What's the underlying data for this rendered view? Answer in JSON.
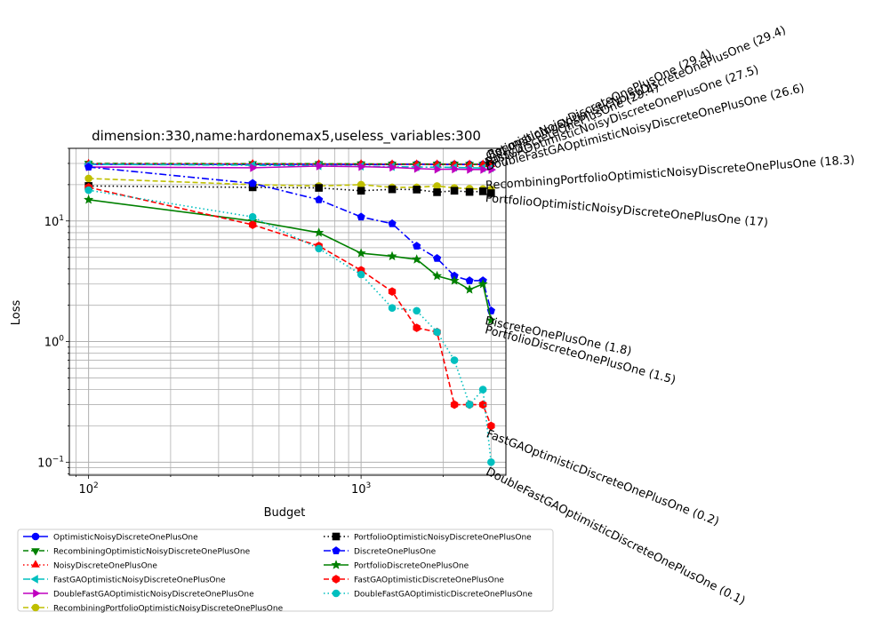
{
  "chart_data": {
    "type": "line",
    "title": "dimension:330,name:hardonemax5,useless_variables:300",
    "xlabel": "Budget",
    "ylabel": "Loss",
    "xscale": "log",
    "yscale": "log",
    "xlim": [
      85,
      3400
    ],
    "ylim": [
      0.078,
      40
    ],
    "grid": true,
    "legend_position": "below plot, two columns",
    "x_tick_labels": [
      {
        "value": 100,
        "base": "10",
        "exp": "2"
      },
      {
        "value": 1000,
        "base": "10",
        "exp": "3"
      }
    ],
    "y_tick_labels": [
      {
        "value": 0.1,
        "base": "10",
        "exp": "−1"
      },
      {
        "value": 1,
        "base": "10",
        "exp": "0"
      },
      {
        "value": 10,
        "base": "10",
        "exp": "1"
      }
    ],
    "series": [
      {
        "name": "OptimisticNoisyDiscreteOnePlusOne",
        "color": "#0000ff",
        "dash": "solid",
        "marker": "circle",
        "x": [
          100,
          400,
          700,
          1000,
          1300,
          1600,
          1900,
          2200,
          2500,
          2800,
          3000
        ],
        "y": [
          29.5,
          29.4,
          29.5,
          29.4,
          29.4,
          29.5,
          29.4,
          29.4,
          29.4,
          29.4,
          29.4
        ]
      },
      {
        "name": "RecombiningOptimisticNoisyDiscreteOnePlusOne",
        "color": "#008000",
        "dash": "dashed",
        "marker": "triangle-down",
        "x": [
          100,
          400,
          700,
          1000,
          1300,
          1600,
          1900,
          2200,
          2500,
          2800,
          3000
        ],
        "y": [
          30.0,
          29.8,
          29.8,
          29.7,
          29.6,
          29.6,
          29.5,
          29.5,
          29.4,
          29.4,
          29.4
        ]
      },
      {
        "name": "NoisyDiscreteOnePlusOne",
        "color": "#ff0000",
        "dash": "dotted",
        "marker": "triangle-up",
        "x": [
          100,
          400,
          700,
          1000,
          1300,
          1600,
          1900,
          2200,
          2500,
          2800,
          3000
        ],
        "y": [
          29.8,
          29.7,
          29.6,
          29.6,
          29.5,
          29.5,
          29.5,
          29.4,
          29.4,
          29.4,
          29.4
        ]
      },
      {
        "name": "FastGAOptimisticNoisyDiscreteOnePlusOne",
        "color": "#00bfbf",
        "dash": "dashdot",
        "marker": "triangle-left",
        "x": [
          100,
          400,
          700,
          1000,
          1300,
          1600,
          1900,
          2200,
          2500,
          2800,
          3000
        ],
        "y": [
          29.5,
          29.0,
          28.6,
          28.4,
          28.2,
          28.0,
          27.9,
          27.8,
          27.6,
          27.5,
          27.5
        ]
      },
      {
        "name": "DoubleFastGAOptimisticNoisyDiscreteOnePlusOne",
        "color": "#bf00bf",
        "dash": "solid",
        "marker": "triangle-right",
        "x": [
          100,
          400,
          700,
          1000,
          1300,
          1600,
          1900,
          2200,
          2500,
          2800,
          3000
        ],
        "y": [
          28.0,
          27.6,
          28.5,
          28.2,
          27.8,
          27.2,
          26.8,
          26.9,
          26.7,
          26.7,
          26.6
        ]
      },
      {
        "name": "RecombiningPortfolioOptimisticNoisyDiscreteOnePlusOne",
        "color": "#bfbf00",
        "dash": "dashed",
        "marker": "circle",
        "x": [
          100,
          400,
          700,
          1000,
          1300,
          1600,
          1900,
          2200,
          2500,
          2800,
          3000
        ],
        "y": [
          22.5,
          20.0,
          19.5,
          20.0,
          19.0,
          19.0,
          19.5,
          18.8,
          18.5,
          18.4,
          18.3
        ]
      },
      {
        "name": "PortfolioOptimisticNoisyDiscreteOnePlusOne",
        "color": "#000000",
        "dash": "dotted",
        "marker": "square",
        "x": [
          100,
          400,
          700,
          1000,
          1300,
          1600,
          1900,
          2200,
          2500,
          2800,
          3000
        ],
        "y": [
          19.5,
          19.0,
          18.8,
          17.8,
          18.3,
          18.2,
          17.3,
          17.8,
          17.4,
          17.6,
          17.0
        ]
      },
      {
        "name": "DiscreteOnePlusOne",
        "color": "#0000ff",
        "dash": "dashdot",
        "marker": "pentagon",
        "x": [
          100,
          400,
          700,
          1000,
          1300,
          1600,
          1900,
          2200,
          2500,
          2800,
          3000
        ],
        "y": [
          28.0,
          20.5,
          15.0,
          10.8,
          9.5,
          6.2,
          4.9,
          3.5,
          3.2,
          3.2,
          1.8
        ]
      },
      {
        "name": "PortfolioDiscreteOnePlusOne",
        "color": "#008000",
        "dash": "solid",
        "marker": "star",
        "x": [
          100,
          400,
          700,
          1000,
          1300,
          1600,
          1900,
          2200,
          2500,
          2800,
          3000
        ],
        "y": [
          15.0,
          10.0,
          8.0,
          5.4,
          5.1,
          4.8,
          3.5,
          3.2,
          2.7,
          3.0,
          1.5
        ]
      },
      {
        "name": "FastGAOptimisticDiscreteOnePlusOne",
        "color": "#ff0000",
        "dash": "dashed",
        "marker": "hexagon",
        "x": [
          100,
          400,
          700,
          1000,
          1300,
          1600,
          1900,
          2200,
          2500,
          2800,
          3000
        ],
        "y": [
          19.0,
          9.3,
          6.2,
          3.9,
          2.6,
          1.3,
          1.2,
          0.3,
          0.3,
          0.3,
          0.2
        ]
      },
      {
        "name": "DoubleFastGAOptimisticDiscreteOnePlusOne",
        "color": "#00bfbf",
        "dash": "dotted",
        "marker": "circle",
        "x": [
          100,
          400,
          700,
          1000,
          1300,
          1600,
          1900,
          2200,
          2500,
          2800,
          3000
        ],
        "y": [
          18.0,
          10.8,
          5.9,
          3.6,
          1.9,
          1.8,
          1.2,
          0.7,
          0.3,
          0.4,
          0.1
        ]
      }
    ],
    "annotations": [
      {
        "text": "OptimisticNoisyDiscreteOnePlusOne (29.4)",
        "y": 29.4
      },
      {
        "text": "RecombiningOptimisticNoisyDiscreteOnePlusOne (29.4)",
        "y": 29.4
      },
      {
        "text": "NoisyDiscreteOnePlusOne (29.4)",
        "y": 29.4
      },
      {
        "text": "FastGAOptimisticNoisyDiscreteOnePlusOne (27.5)",
        "y": 27.5
      },
      {
        "text": "DoubleFastGAOptimisticNoisyDiscreteOnePlusOne (26.6)",
        "y": 26.6
      },
      {
        "text": "RecombiningPortfolioOptimisticNoisyDiscreteOnePlusOne (18.3)",
        "y": 18.3
      },
      {
        "text": "PortfolioOptimisticNoisyDiscreteOnePlusOne (17)",
        "y": 17
      },
      {
        "text": "DiscreteOnePlusOne (1.8)",
        "y": 1.8
      },
      {
        "text": "PortfolioDiscreteOnePlusOne (1.5)",
        "y": 1.5
      },
      {
        "text": "FastGAOptimisticDiscreteOnePlusOne (0.2)",
        "y": 0.2
      },
      {
        "text": "DoubleFastGAOptimisticDiscreteOnePlusOne (0.1)",
        "y": 0.1
      }
    ]
  }
}
